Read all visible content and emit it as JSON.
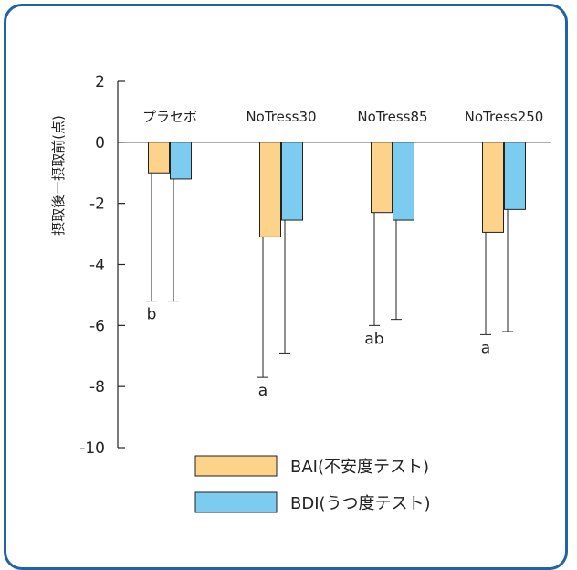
{
  "chart_data": {
    "type": "bar",
    "title": "",
    "xlabel": "",
    "ylabel": "摂取後ー摂取前(点)",
    "ylim": [
      -10,
      2
    ],
    "yticks": [
      2,
      0,
      -2,
      -4,
      -6,
      -8,
      -10
    ],
    "categories": [
      "プラセボ",
      "NoTress30",
      "NoTress85",
      "NoTress250"
    ],
    "series": [
      {
        "name": "BAI(不安度テスト)",
        "color": "#fdd28a",
        "values": [
          -1.0,
          -3.1,
          -2.3,
          -2.95
        ],
        "error_to": [
          -5.2,
          -7.7,
          -6.0,
          -6.3
        ]
      },
      {
        "name": "BDI(うつ度テスト)",
        "color": "#7cccf0",
        "values": [
          -1.2,
          -2.55,
          -2.55,
          -2.2
        ],
        "error_to": [
          -5.2,
          -6.9,
          -5.8,
          -6.2
        ]
      }
    ],
    "significance": [
      "b",
      "a",
      "ab",
      "a"
    ],
    "grid": false,
    "legend_position": "bottom"
  }
}
